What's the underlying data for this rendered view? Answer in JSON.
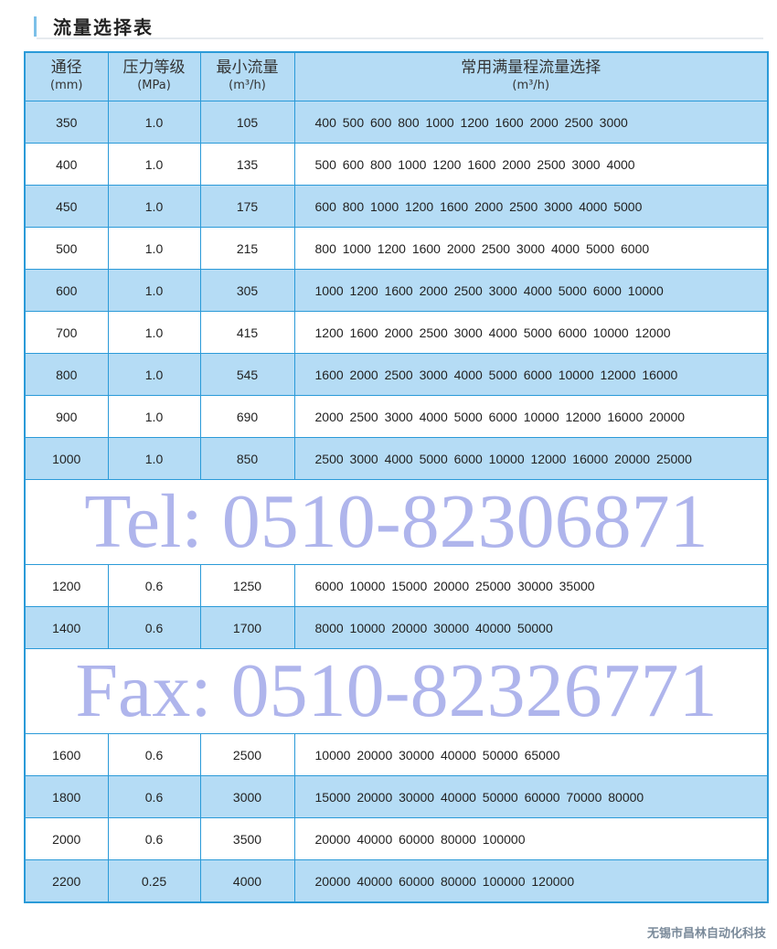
{
  "title": "流量选择表",
  "headers": [
    {
      "label": "通径",
      "unit": "(mm)"
    },
    {
      "label": "压力等级",
      "unit": "(MPa)"
    },
    {
      "label": "最小流量",
      "unit": "(m³/h)"
    },
    {
      "label": "常用满量程流量选择",
      "unit": "(m³/h)"
    }
  ],
  "rows": [
    {
      "dn": "350",
      "pressure": "1.0",
      "min_flow": "105",
      "flows": "400 500 600 800 1000 1200 1600 2000 2500 3000"
    },
    {
      "dn": "400",
      "pressure": "1.0",
      "min_flow": "135",
      "flows": "500 600 800 1000 1200 1600 2000 2500 3000 4000"
    },
    {
      "dn": "450",
      "pressure": "1.0",
      "min_flow": "175",
      "flows": "600 800 1000 1200 1600 2000 2500 3000 4000 5000"
    },
    {
      "dn": "500",
      "pressure": "1.0",
      "min_flow": "215",
      "flows": "800 1000 1200 1600 2000 2500 3000 4000 5000 6000"
    },
    {
      "dn": "600",
      "pressure": "1.0",
      "min_flow": "305",
      "flows": "1000 1200 1600 2000 2500 3000 4000 5000 6000 10000"
    },
    {
      "dn": "700",
      "pressure": "1.0",
      "min_flow": "415",
      "flows": "1200 1600 2000 2500 3000 4000 5000 6000 10000 12000"
    },
    {
      "dn": "800",
      "pressure": "1.0",
      "min_flow": "545",
      "flows": "1600 2000 2500 3000 4000 5000 6000 10000 12000 16000"
    },
    {
      "dn": "900",
      "pressure": "1.0",
      "min_flow": "690",
      "flows": "2000 2500 3000 4000 5000 6000 10000 12000 16000 20000"
    },
    {
      "dn": "1000",
      "pressure": "1.0",
      "min_flow": "850",
      "flows": "2500 3000 4000 5000 6000 10000 12000 16000 20000 25000"
    },
    {
      "dn": "1200",
      "pressure": "0.6",
      "min_flow": "1250",
      "flows": "6000 10000 15000 20000 25000 30000 35000"
    },
    {
      "dn": "1400",
      "pressure": "0.6",
      "min_flow": "1700",
      "flows": "8000 10000 20000 30000 40000 50000"
    },
    {
      "dn": "1600",
      "pressure": "0.6",
      "min_flow": "2500",
      "flows": "10000 20000 30000 40000 50000 65000"
    },
    {
      "dn": "1800",
      "pressure": "0.6",
      "min_flow": "3000",
      "flows": "15000 20000 30000 40000 50000 60000 70000 80000"
    },
    {
      "dn": "2000",
      "pressure": "0.6",
      "min_flow": "3500",
      "flows": "20000 40000 60000 80000 100000"
    },
    {
      "dn": "2200",
      "pressure": "0.25",
      "min_flow": "4000",
      "flows": "20000 40000 60000 80000 100000 120000"
    }
  ],
  "watermark": {
    "tel": "Tel: 0510-82306871",
    "fax": "Fax: 0510-82326771"
  },
  "company": "无锡市昌林自动化科技",
  "colors": {
    "border": "#2a9ad8",
    "row_blue": "#b5dcf5",
    "row_white": "#ffffff"
  }
}
